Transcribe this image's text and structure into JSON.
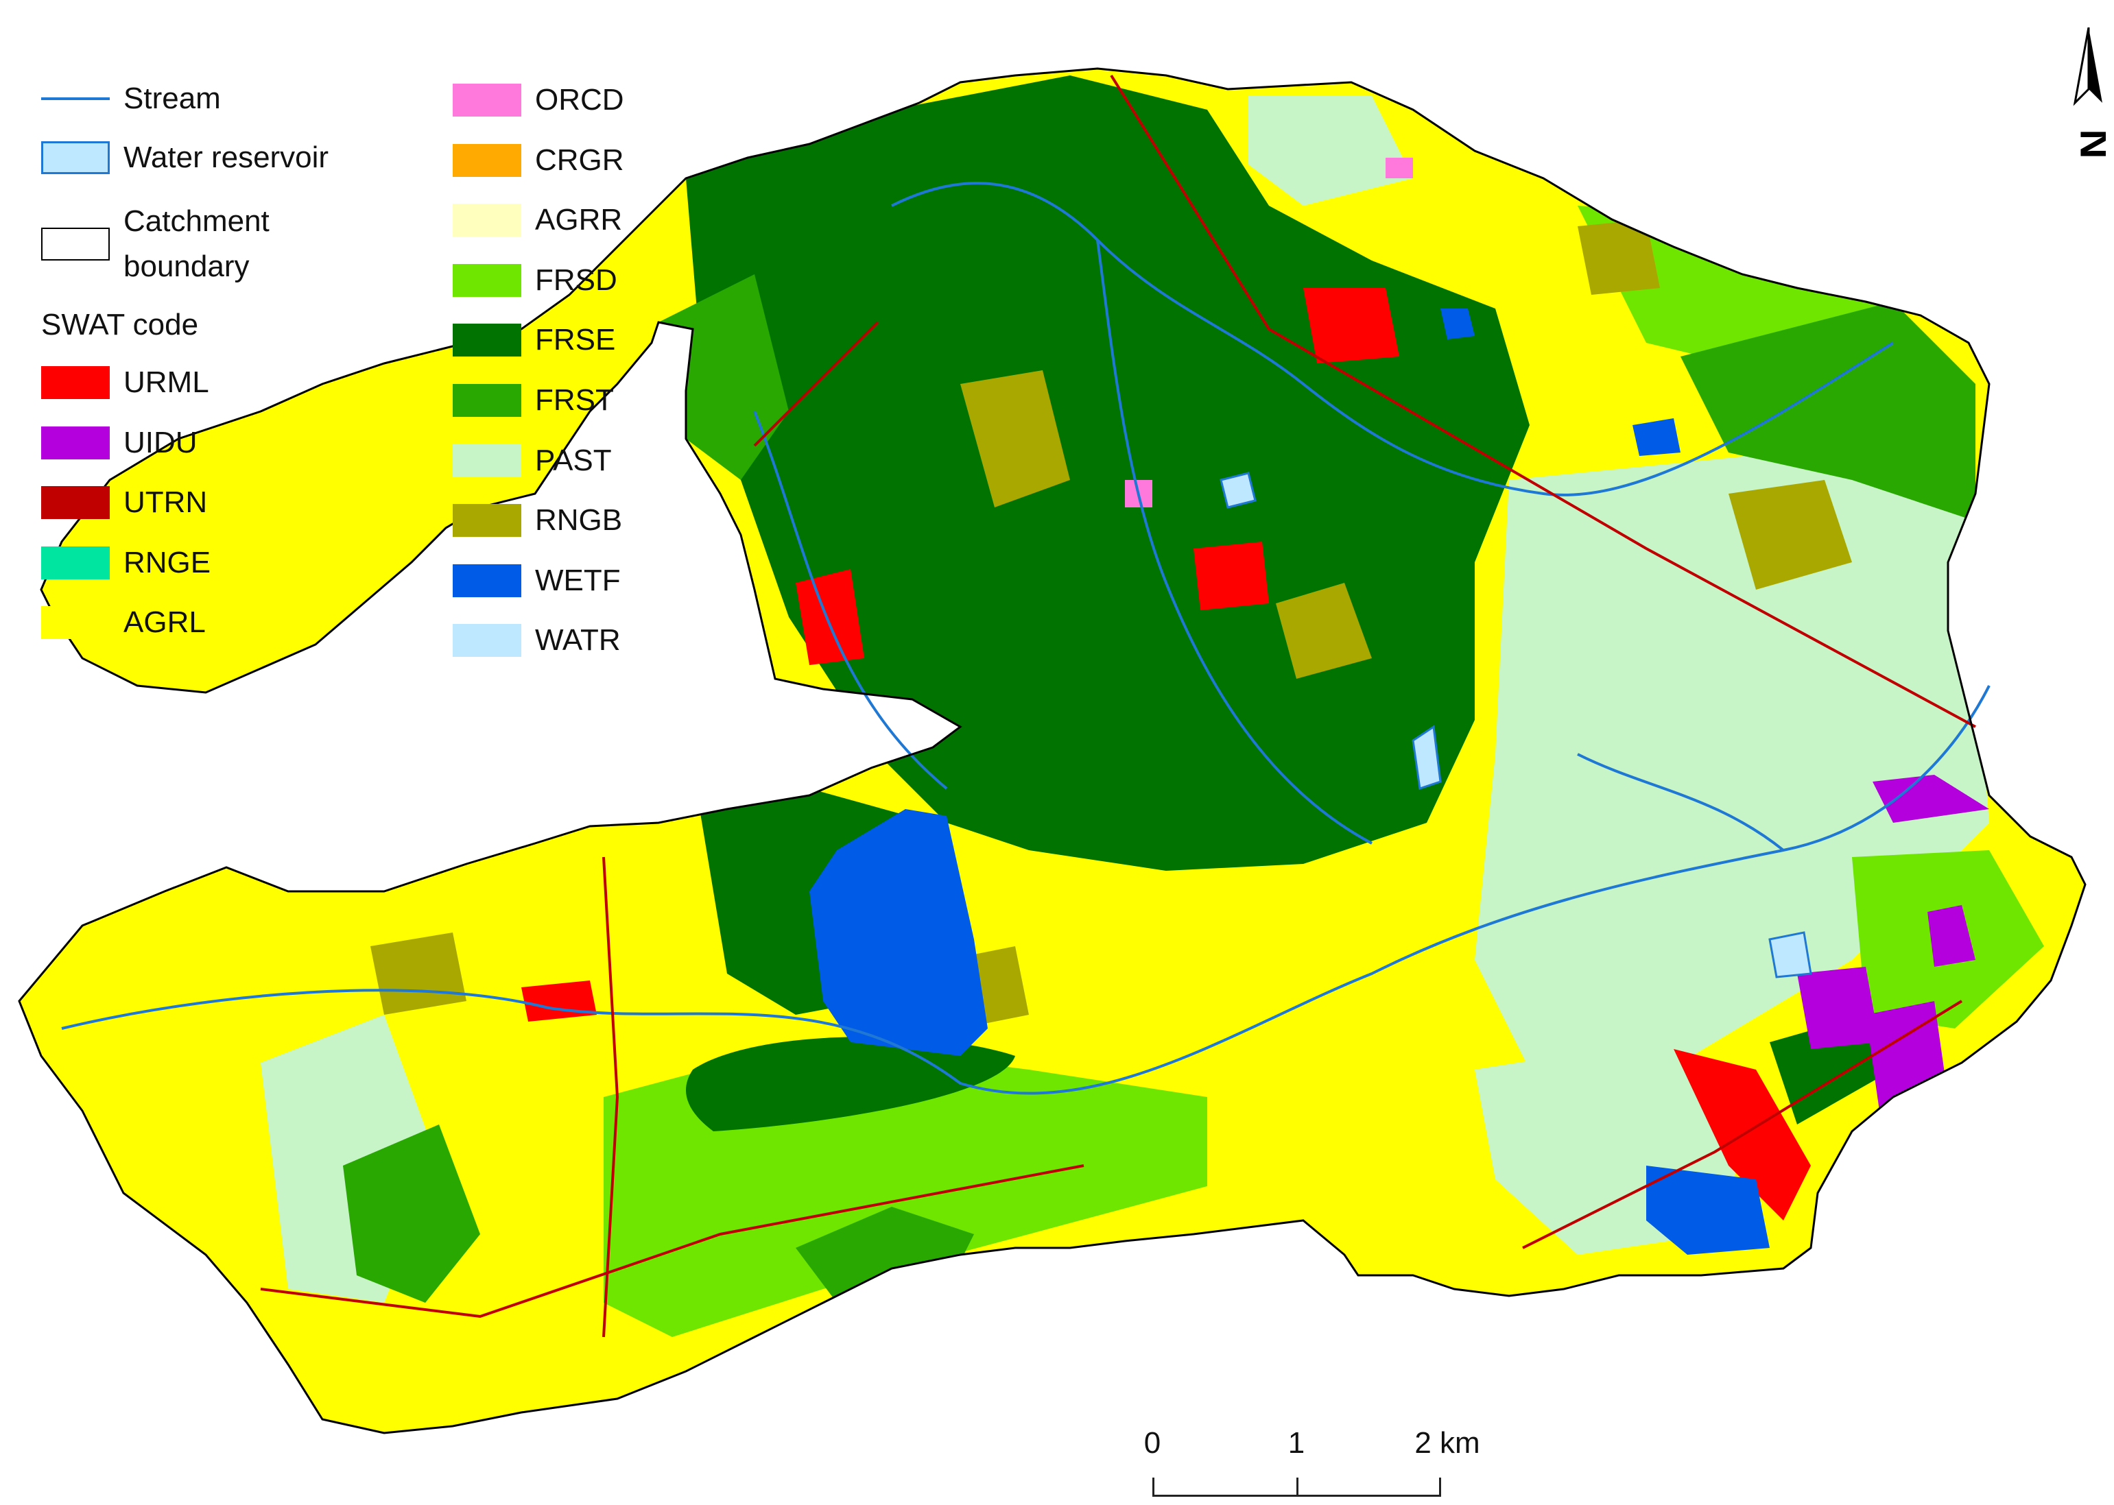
{
  "legend": {
    "stream_label": "Stream",
    "reservoir_label": "Water reservoir",
    "catchment_label_line1": "Catchment",
    "catchment_label_line2": "boundary",
    "swat_heading": "SWAT code",
    "col1": [
      {
        "code": "URML",
        "color": "#ff0000"
      },
      {
        "code": "UIDU",
        "color": "#b400dc"
      },
      {
        "code": "UTRN",
        "color": "#c00000"
      },
      {
        "code": "RNGE",
        "color": "#00e6a0"
      },
      {
        "code": "AGRL",
        "color": "#ffff00"
      }
    ],
    "col2": [
      {
        "code": "ORCD",
        "color": "#ff78dc"
      },
      {
        "code": "CRGR",
        "color": "#ffaa00"
      },
      {
        "code": "AGRR",
        "color": "#ffffbe"
      },
      {
        "code": "FRSD",
        "color": "#6ee600"
      },
      {
        "code": "FRSE",
        "color": "#007300"
      },
      {
        "code": "FRST",
        "color": "#28a800"
      },
      {
        "code": "PAST",
        "color": "#c8f5c8"
      },
      {
        "code": "RNGB",
        "color": "#a8a800"
      },
      {
        "code": "WETF",
        "color": "#005ce6"
      },
      {
        "code": "WATR",
        "color": "#bee8ff"
      }
    ],
    "stream_color": "#1f78d4",
    "reservoir_fill": "#bee8ff",
    "reservoir_stroke": "#1f78d4"
  },
  "scalebar": {
    "labels": [
      "0",
      "1",
      "2 km"
    ]
  },
  "north_arrow": {
    "label": "N",
    "icon": "north-arrow-icon"
  }
}
